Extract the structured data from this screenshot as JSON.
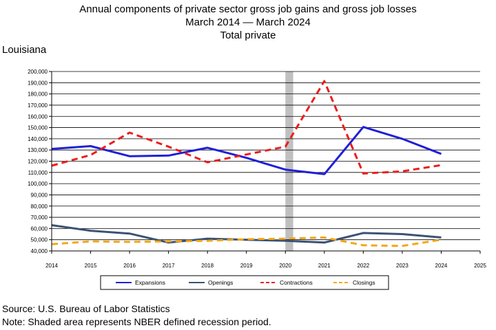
{
  "titles": {
    "line1": "Annual components of private sector gross job gains and gross job losses",
    "line2": "March 2014 — March 2024",
    "line3": "Total private"
  },
  "state": "Louisiana",
  "footnotes": {
    "source": "Source: U.S. Bureau of Labor Statistics",
    "note": "Note: Shaded area represents NBER defined recession period."
  },
  "chart_data": {
    "type": "line",
    "x": [
      2014,
      2015,
      2016,
      2017,
      2018,
      2019,
      2020,
      2021,
      2022,
      2023,
      2024
    ],
    "x_ticks": [
      "2014",
      "2015",
      "2016",
      "2017",
      "2018",
      "2019",
      "2020",
      "2021",
      "2022",
      "2023",
      "2024",
      "2025"
    ],
    "xlim": [
      2014,
      2025
    ],
    "ylim": [
      40000,
      200000
    ],
    "y_ticks": [
      "40,000",
      "50,000",
      "60,000",
      "70,000",
      "80,000",
      "90,000",
      "100,000",
      "110,000",
      "120,000",
      "130,000",
      "140,000",
      "150,000",
      "160,000",
      "170,000",
      "180,000",
      "190,000",
      "200,000"
    ],
    "grid": "horizontal",
    "recession": [
      2020,
      2020.2
    ],
    "recession_color": "#c0c0c0",
    "legend_position": "bottom",
    "series": [
      {
        "name": "Expansions",
        "color": "#1f1fd8",
        "style": "solid",
        "width": 3,
        "values": [
          131000,
          133500,
          124500,
          125000,
          132000,
          123000,
          112500,
          108500,
          150500,
          140000,
          126500
        ]
      },
      {
        "name": "Openings",
        "color": "#3b5274",
        "style": "solid",
        "width": 3,
        "values": [
          63000,
          58000,
          55500,
          47500,
          51000,
          50000,
          49000,
          47500,
          56000,
          55000,
          52000
        ]
      },
      {
        "name": "Contractions",
        "color": "#ee1c1c",
        "style": "dashed",
        "width": 3,
        "values": [
          116000,
          125500,
          145500,
          133000,
          119000,
          126000,
          133000,
          191500,
          109000,
          111000,
          116500
        ]
      },
      {
        "name": "Closings",
        "color": "#f2a818",
        "style": "dashed",
        "width": 3,
        "values": [
          46000,
          48500,
          48000,
          48500,
          49000,
          50500,
          51000,
          52000,
          45000,
          44500,
          50000
        ]
      }
    ]
  }
}
